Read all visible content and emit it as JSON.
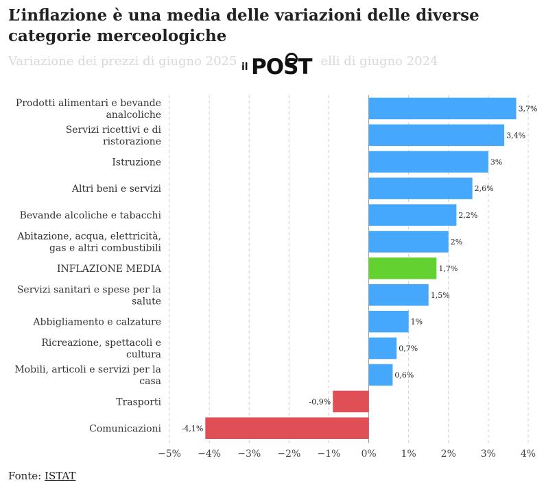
{
  "title": "L’inflazione è una media delle variazioni delle diverse categorie merceologiche",
  "subtitle": "Variazione dei prezzi di giugno 2025 rispetto a quelli di giugno 2024",
  "logo": {
    "il": "il",
    "post": "POST"
  },
  "source": {
    "prefix": "Fonte:",
    "link": "ISTAT"
  },
  "colors": {
    "positive": "#45a8fa",
    "highlight": "#63d12f",
    "negative": "#e04f56",
    "grid": "#cccccc",
    "zero_line": "#999999"
  },
  "chart_data": {
    "type": "bar",
    "orientation": "horizontal",
    "title": "L’inflazione è una media delle variazioni delle diverse categorie merceologiche",
    "categories": [
      "Prodotti alimentari e bevande analcoliche",
      "Servizi ricettivi e di ristorazione",
      "Istruzione",
      "Altri beni e servizi",
      "Bevande alcoliche e tabacchi",
      "Abitazione, acqua, elettricità, gas e altri combustibili",
      "INFLAZIONE MEDIA",
      "Servizi sanitari e spese per la salute",
      "Abbigliamento e calzature",
      "Ricreazione, spettacoli e cultura",
      "Mobili, articoli e servizi per la casa",
      "Trasporti",
      "Comunicazioni"
    ],
    "category_lines": [
      [
        "Prodotti alimentari e bevande",
        "analcoliche"
      ],
      [
        "Servizi ricettivi e di",
        "ristorazione"
      ],
      [
        "Istruzione"
      ],
      [
        "Altri beni e servizi"
      ],
      [
        "Bevande alcoliche e tabacchi"
      ],
      [
        "Abitazione, acqua, elettricità,",
        "gas e altri combustibili"
      ],
      [
        "INFLAZIONE MEDIA"
      ],
      [
        "Servizi sanitari e spese per la",
        "salute"
      ],
      [
        "Abbigliamento e calzature"
      ],
      [
        "Ricreazione, spettacoli e",
        "cultura"
      ],
      [
        "Mobili, articoli e servizi per la",
        "casa"
      ],
      [
        "Trasporti"
      ],
      [
        "Comunicazioni"
      ]
    ],
    "values": [
      3.7,
      3.4,
      3.0,
      2.6,
      2.2,
      2.0,
      1.7,
      1.5,
      1.0,
      0.7,
      0.6,
      -0.9,
      -4.1
    ],
    "value_labels": [
      "3,7%",
      "3,4%",
      "3%",
      "2,6%",
      "2,2%",
      "2%",
      "1,7%",
      "1,5%",
      "1%",
      "0,7%",
      "0,6%",
      "-0,9%",
      "-4,1%"
    ],
    "highlight_index": 6,
    "xlim": [
      -5,
      4
    ],
    "x_ticks": [
      -5,
      -4,
      -3,
      -2,
      -1,
      0,
      1,
      2,
      3,
      4
    ],
    "x_tick_labels": [
      "−5%",
      "−4%",
      "−3%",
      "−2%",
      "−1%",
      "0%",
      "1%",
      "2%",
      "3%",
      "4%"
    ],
    "xlabel": "",
    "ylabel": "",
    "grid": true
  }
}
